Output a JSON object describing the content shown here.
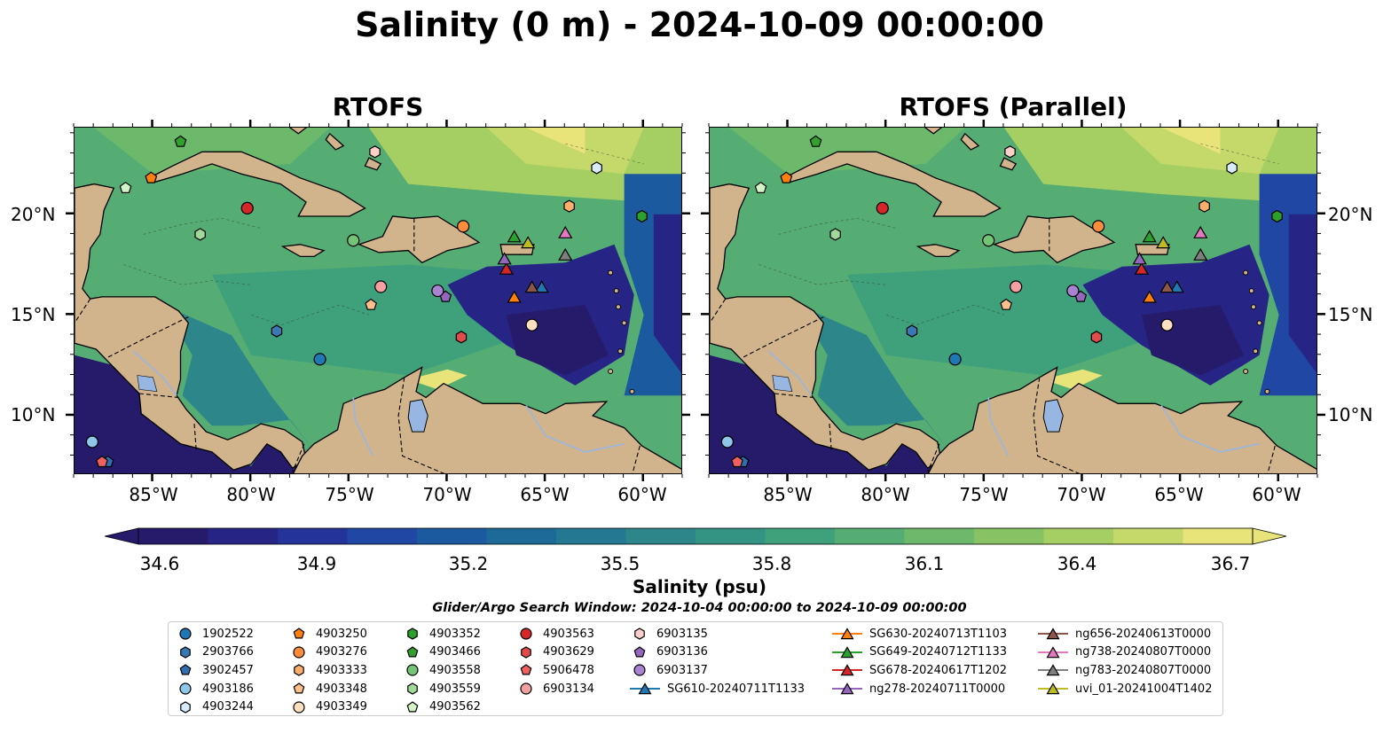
{
  "title": "Salinity (0 m) - 2024-10-09 00:00:00",
  "panels": [
    {
      "title": "RTOFS"
    },
    {
      "title": "RTOFS (Parallel)"
    }
  ],
  "lat_labels": [
    "20°N",
    "15°N",
    "10°N"
  ],
  "lon_labels": [
    "85°W",
    "80°W",
    "75°W",
    "70°W",
    "65°W",
    "60°W"
  ],
  "colorbar": {
    "label": "Salinity (psu)",
    "min": 34.6,
    "max": 36.7,
    "ticks": [
      "34.6",
      "34.9",
      "35.2",
      "35.5",
      "35.8",
      "36.1",
      "36.4",
      "36.7"
    ],
    "colors": [
      "#261a6b",
      "#262585",
      "#24339a",
      "#1f47a3",
      "#1c5a9f",
      "#1d6a98",
      "#247891",
      "#2c868a",
      "#349484",
      "#3fa17c",
      "#55ad74",
      "#6db96b",
      "#87c364",
      "#a6cf63",
      "#c5d86a",
      "#e8e47a"
    ]
  },
  "search_window": "Glider/Argo Search Window: 2024-10-04 00:00:00 to 2024-10-09 00:00:00",
  "map_colors": {
    "land": "#d2b48c",
    "lake": "#97b6e1",
    "river": "#97b6e1"
  },
  "legend": {
    "items": [
      {
        "label": "1902522",
        "marker": "circle",
        "color": "#1f77b4"
      },
      {
        "label": "2903766",
        "marker": "hexagon",
        "color": "#3a78b5"
      },
      {
        "label": "3902457",
        "marker": "pentagon",
        "color": "#2f6fb0"
      },
      {
        "label": "4903186",
        "marker": "circle",
        "color": "#8ec7e8"
      },
      {
        "label": "4903244",
        "marker": "hexagon",
        "color": "#d6ecfa"
      },
      {
        "label": "4903250",
        "marker": "pentagon",
        "color": "#ff7f0e"
      },
      {
        "label": "4903276",
        "marker": "circle",
        "color": "#fd8d3c"
      },
      {
        "label": "4903333",
        "marker": "hexagon",
        "color": "#fdae6b"
      },
      {
        "label": "4903348",
        "marker": "pentagon",
        "color": "#fdc08a"
      },
      {
        "label": "4903349",
        "marker": "circle",
        "color": "#fee0c0"
      },
      {
        "label": "4903352",
        "marker": "hexagon",
        "color": "#2ca02c"
      },
      {
        "label": "4903466",
        "marker": "pentagon",
        "color": "#33a02c"
      },
      {
        "label": "4903558",
        "marker": "circle",
        "color": "#74c476"
      },
      {
        "label": "4903559",
        "marker": "hexagon",
        "color": "#a1d99b"
      },
      {
        "label": "4903562",
        "marker": "pentagon",
        "color": "#d2f5c8"
      },
      {
        "label": "4903563",
        "marker": "circle",
        "color": "#d62728"
      },
      {
        "label": "4903629",
        "marker": "hexagon",
        "color": "#e34a4a"
      },
      {
        "label": "5906478",
        "marker": "pentagon",
        "color": "#f06060"
      },
      {
        "label": "6903134",
        "marker": "circle",
        "color": "#f4a0a0"
      },
      {
        "label": "6903135",
        "marker": "hexagon",
        "color": "#fcd0c8"
      },
      {
        "label": "6903136",
        "marker": "pentagon",
        "color": "#9467bd"
      },
      {
        "label": "6903137",
        "marker": "circle",
        "color": "#a982d1"
      },
      {
        "label": "SG610-20240711T1133",
        "marker": "triangle-line",
        "color": "#1f77b4"
      },
      {
        "label": "SG630-20240713T1103",
        "marker": "triangle-line",
        "color": "#ff7f0e"
      },
      {
        "label": "SG649-20240712T1133",
        "marker": "triangle-line",
        "color": "#2ca02c"
      },
      {
        "label": "SG678-20240617T1202",
        "marker": "triangle-line",
        "color": "#d62728"
      },
      {
        "label": "ng278-20240711T0000",
        "marker": "triangle-line",
        "color": "#9467bd"
      },
      {
        "label": "ng656-20240613T0000",
        "marker": "triangle-line",
        "color": "#8c564b"
      },
      {
        "label": "ng738-20240807T0000",
        "marker": "triangle-line",
        "color": "#e377c2"
      },
      {
        "label": "ng783-20240807T0000",
        "marker": "triangle-line",
        "color": "#7f7f7f"
      },
      {
        "label": "uvi_01-20241004T1402",
        "marker": "triangle-line",
        "color": "#bcbd22"
      }
    ]
  },
  "observations": [
    {
      "id": "1902522",
      "lon": -76.5,
      "lat": 12.8
    },
    {
      "id": "2903766",
      "lon": -78.7,
      "lat": 14.2
    },
    {
      "id": "3902457",
      "lon": -87.3,
      "lat": 7.7
    },
    {
      "id": "4903186",
      "lon": -88.1,
      "lat": 8.7
    },
    {
      "id": "4903244",
      "lon": -62.4,
      "lat": 22.3
    },
    {
      "id": "4903250",
      "lon": -85.1,
      "lat": 21.8
    },
    {
      "id": "4903276",
      "lon": -69.2,
      "lat": 19.4
    },
    {
      "id": "4903333",
      "lon": -63.8,
      "lat": 20.4
    },
    {
      "id": "4903348",
      "lon": -73.9,
      "lat": 15.5
    },
    {
      "id": "4903349",
      "lon": -65.7,
      "lat": 14.5
    },
    {
      "id": "4903352",
      "lon": -60.1,
      "lat": 19.9
    },
    {
      "id": "4903466",
      "lon": -83.6,
      "lat": 23.6
    },
    {
      "id": "4903558",
      "lon": -74.8,
      "lat": 18.7
    },
    {
      "id": "4903559",
      "lon": -82.6,
      "lat": 19.0
    },
    {
      "id": "4903562",
      "lon": -86.4,
      "lat": 21.3
    },
    {
      "id": "4903563",
      "lon": -80.2,
      "lat": 20.3
    },
    {
      "id": "4903629",
      "lon": -69.3,
      "lat": 13.9
    },
    {
      "id": "5906478",
      "lon": -87.6,
      "lat": 7.7
    },
    {
      "id": "6903134",
      "lon": -73.4,
      "lat": 16.4
    },
    {
      "id": "6903135",
      "lon": -73.7,
      "lat": 23.1
    },
    {
      "id": "6903136",
      "lon": -70.1,
      "lat": 15.9
    },
    {
      "id": "6903137",
      "lon": -70.5,
      "lat": 16.2
    },
    {
      "id": "SG610-20240711T1133",
      "lon": -65.2,
      "lat": 16.4
    },
    {
      "id": "SG630-20240713T1103",
      "lon": -66.6,
      "lat": 15.9
    },
    {
      "id": "SG649-20240712T1133",
      "lon": -66.6,
      "lat": 18.9
    },
    {
      "id": "SG678-20240617T1202",
      "lon": -67.0,
      "lat": 17.3
    },
    {
      "id": "ng278-20240711T0000",
      "lon": -67.1,
      "lat": 17.8
    },
    {
      "id": "ng656-20240613T0000",
      "lon": -65.7,
      "lat": 16.4
    },
    {
      "id": "ng738-20240807T0000",
      "lon": -64.0,
      "lat": 19.1
    },
    {
      "id": "ng783-20240807T0000",
      "lon": -64.0,
      "lat": 18.0
    },
    {
      "id": "uvi_01-20241004T1402",
      "lon": -65.9,
      "lat": 18.6
    }
  ]
}
